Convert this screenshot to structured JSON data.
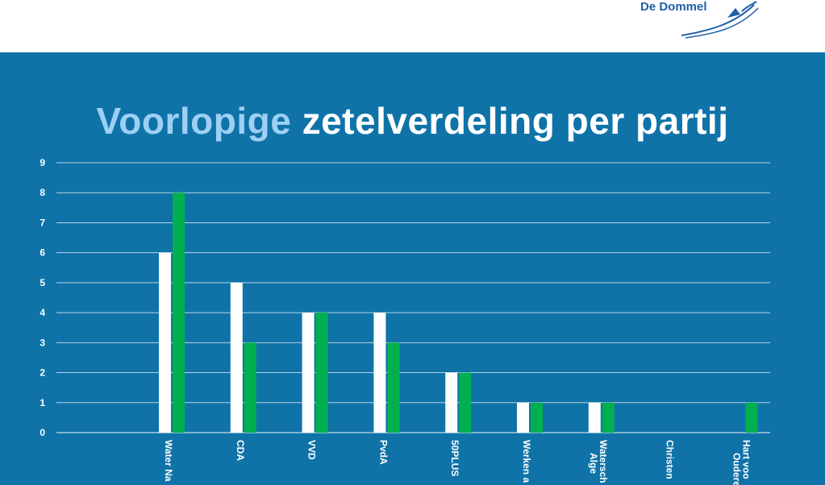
{
  "logo": {
    "text": "De Dommel"
  },
  "title": {
    "part1": "Voorlopige",
    "part2": "zetelverdeling per partij"
  },
  "colors": {
    "background": "#0f73a8",
    "accent": "#9dd0f4",
    "series1": "#ffffff",
    "series2": "#00b050"
  },
  "chart_data": {
    "type": "bar",
    "title": "Voorlopige zetelverdeling per partij",
    "xlabel": "",
    "ylabel": "",
    "ylim": [
      0,
      9
    ],
    "yticks": [
      0,
      1,
      2,
      3,
      4,
      5,
      6,
      7,
      8,
      9
    ],
    "grid": true,
    "categories": [
      "Water Na",
      "CDA",
      "VVD",
      "PvdA",
      "50PLUS",
      "Werken a",
      "Alge\nWatersch",
      "Christen",
      "Oudere\nHart voo"
    ],
    "series": [
      {
        "values": [
          6,
          5,
          4,
          4,
          2,
          1,
          1,
          0,
          0
        ]
      },
      {
        "values": [
          8,
          3,
          4,
          3,
          2,
          1,
          1,
          0,
          1
        ]
      }
    ]
  }
}
